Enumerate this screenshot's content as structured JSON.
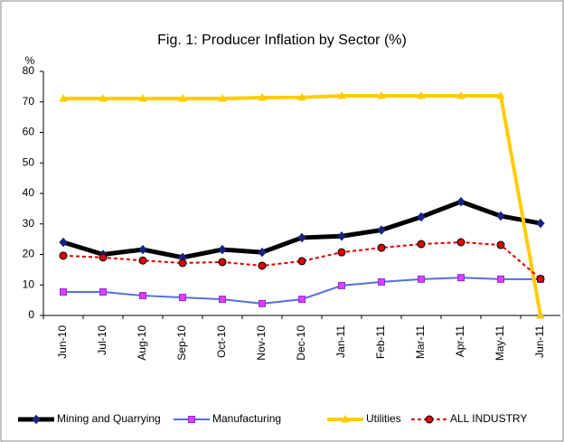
{
  "chart_data": {
    "type": "line",
    "title": "Fig. 1: Producer Inflation by Sector (%)",
    "y_label": "%",
    "categories": [
      "Jun-10",
      "Jul-10",
      "Aug-10",
      "Sep-10",
      "Oct-10",
      "Nov-10",
      "Dec-10",
      "Jan-11",
      "Feb-11",
      "Mar-11",
      "Apr-11",
      "May-11",
      "Jun-11"
    ],
    "series": [
      {
        "name": "Mining and Quarrying",
        "color": "#000000",
        "values": [
          24,
          20,
          21.6,
          19,
          21.6,
          20.7,
          25.5,
          26,
          28,
          32.3,
          37.3,
          32.6,
          30.2
        ]
      },
      {
        "name": "Manufacturing",
        "color": "#4f6fe0",
        "values": [
          7.7,
          7.7,
          6.5,
          5.9,
          5.3,
          3.9,
          5.3,
          9.8,
          11,
          11.9,
          12.4,
          11.9,
          11.9
        ]
      },
      {
        "name": "Utilities",
        "color": "#ffcc00",
        "values": [
          71.1,
          71.1,
          71.1,
          71.1,
          71.1,
          71.4,
          71.5,
          72,
          72,
          72,
          72,
          72,
          0
        ]
      },
      {
        "name": "ALL INDUSTRY",
        "color": "#e00000",
        "values": [
          19.6,
          19,
          18,
          17.2,
          17.5,
          16.3,
          17.8,
          20.7,
          22.2,
          23.4,
          24,
          23.1,
          12
        ]
      }
    ],
    "ylim": [
      0,
      80
    ],
    "yticks": [
      0,
      10,
      20,
      30,
      40,
      50,
      60,
      70,
      80
    ],
    "legend": "bottom"
  }
}
